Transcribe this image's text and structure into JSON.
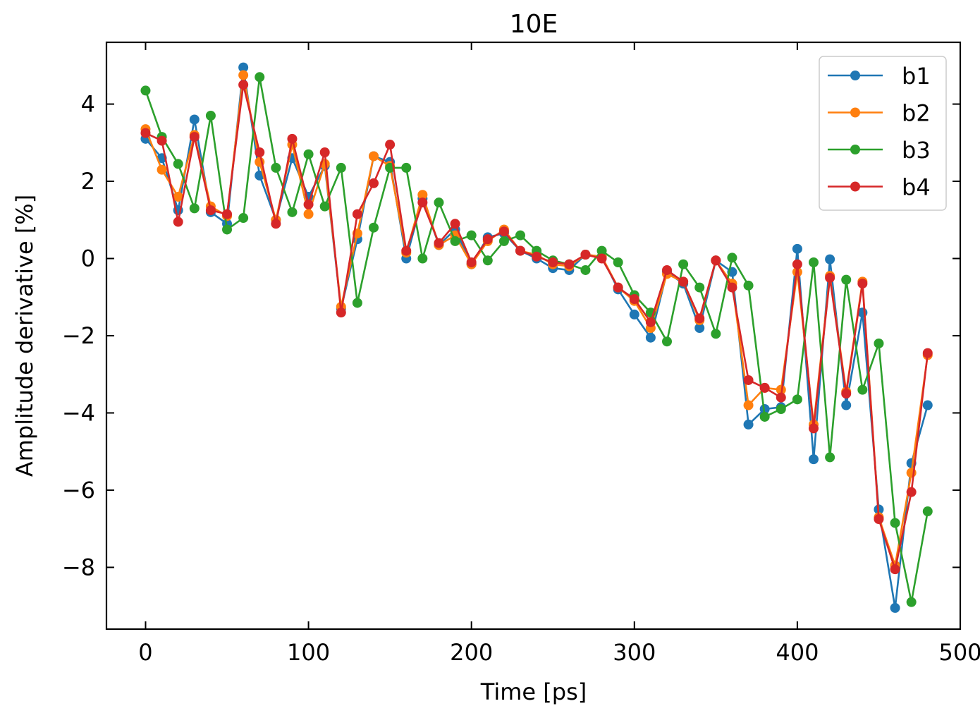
{
  "chart_data": {
    "type": "line",
    "title": "10E",
    "xlabel": "Time [ps]",
    "ylabel": "Amplitude derivative [%]",
    "xlim": [
      -24,
      500
    ],
    "ylim": [
      -9.6,
      5.6
    ],
    "xticks": [
      0,
      100,
      200,
      300,
      400,
      500
    ],
    "yticks": [
      -8,
      -6,
      -4,
      -2,
      0,
      2,
      4
    ],
    "xtick_labels": [
      "0",
      "100",
      "200",
      "300",
      "400",
      "500"
    ],
    "ytick_labels": [
      "−8",
      "−6",
      "−4",
      "−2",
      "0",
      "2",
      "4"
    ],
    "grid": false,
    "legend": "top-right",
    "x": [
      0,
      10,
      20,
      30,
      40,
      50,
      60,
      70,
      80,
      90,
      100,
      110,
      120,
      130,
      140,
      150,
      160,
      170,
      180,
      190,
      200,
      210,
      220,
      230,
      240,
      250,
      260,
      270,
      280,
      290,
      300,
      310,
      320,
      330,
      340,
      350,
      360,
      370,
      380,
      390,
      400,
      410,
      420,
      430,
      440,
      450,
      460,
      470,
      480
    ],
    "series": [
      {
        "name": "b1",
        "color": "#1f77b4",
        "values": [
          3.1,
          2.6,
          1.25,
          3.6,
          1.2,
          0.9,
          4.95,
          2.15,
          1.0,
          2.6,
          1.6,
          2.4,
          -1.3,
          0.5,
          2.65,
          2.5,
          0.0,
          1.55,
          0.35,
          0.75,
          -0.15,
          0.55,
          0.65,
          0.2,
          0.0,
          -0.25,
          -0.3,
          0.1,
          0.05,
          -0.8,
          -1.45,
          -2.05,
          -0.35,
          -0.65,
          -1.8,
          -0.05,
          -0.35,
          -4.3,
          -3.9,
          -3.85,
          0.25,
          -5.2,
          -0.02,
          -3.8,
          -1.4,
          -6.5,
          -9.05,
          -5.3,
          -3.8
        ]
      },
      {
        "name": "b2",
        "color": "#ff7f0e",
        "values": [
          3.35,
          2.3,
          1.6,
          3.2,
          1.35,
          1.1,
          4.75,
          2.5,
          1.0,
          2.95,
          1.15,
          2.45,
          -1.25,
          0.65,
          2.65,
          2.4,
          0.15,
          1.65,
          0.35,
          0.6,
          -0.15,
          0.45,
          0.75,
          0.2,
          0.1,
          -0.15,
          -0.2,
          0.1,
          0.05,
          -0.75,
          -1.1,
          -1.8,
          -0.4,
          -0.6,
          -1.6,
          -0.05,
          -0.65,
          -3.8,
          -3.35,
          -3.4,
          -0.35,
          -4.3,
          -0.45,
          -3.45,
          -0.6,
          -6.7,
          -7.95,
          -5.55,
          -2.5
        ]
      },
      {
        "name": "b3",
        "color": "#2ca02c",
        "values": [
          4.35,
          3.15,
          2.45,
          1.3,
          3.7,
          0.75,
          1.05,
          4.7,
          2.35,
          1.2,
          2.7,
          1.35,
          2.35,
          -1.15,
          0.8,
          2.35,
          2.35,
          0.0,
          1.45,
          0.45,
          0.6,
          -0.05,
          0.45,
          0.6,
          0.2,
          -0.05,
          -0.15,
          -0.3,
          0.2,
          -0.1,
          -0.95,
          -1.4,
          -2.15,
          -0.15,
          -0.75,
          -1.95,
          0.02,
          -0.7,
          -4.1,
          -3.9,
          -3.65,
          -0.1,
          -5.15,
          -0.55,
          -3.4,
          -2.2,
          -6.85,
          -8.9,
          -6.55
        ]
      },
      {
        "name": "b4",
        "color": "#d62728",
        "values": [
          3.25,
          3.05,
          0.95,
          3.15,
          1.25,
          1.15,
          4.5,
          2.75,
          0.9,
          3.1,
          1.4,
          2.75,
          -1.4,
          1.15,
          1.95,
          2.95,
          0.2,
          1.45,
          0.4,
          0.9,
          -0.1,
          0.5,
          0.7,
          0.2,
          0.05,
          -0.1,
          -0.15,
          0.1,
          0.0,
          -0.75,
          -1.05,
          -1.65,
          -0.3,
          -0.6,
          -1.55,
          -0.05,
          -0.75,
          -3.15,
          -3.35,
          -3.6,
          -0.15,
          -4.4,
          -0.5,
          -3.5,
          -0.65,
          -6.75,
          -8.05,
          -6.05,
          -2.45
        ]
      }
    ]
  }
}
